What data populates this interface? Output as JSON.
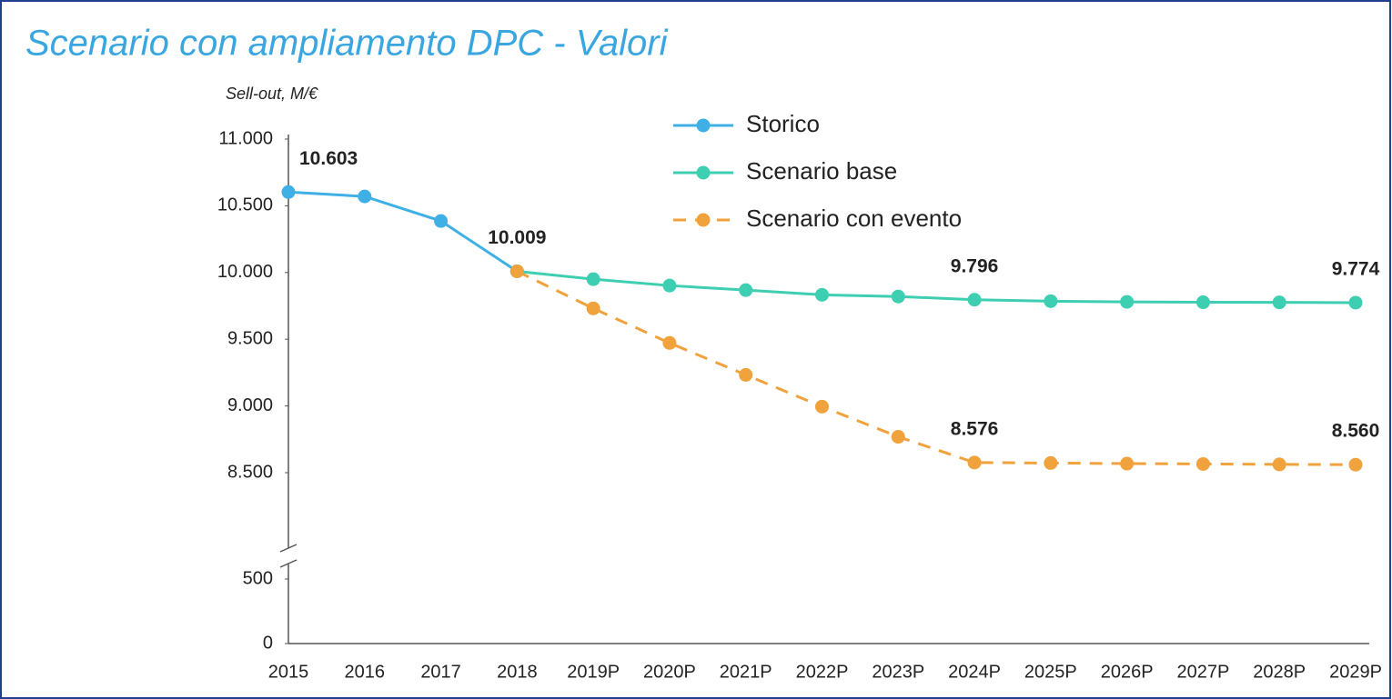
{
  "chart_data": {
    "type": "line",
    "title": "Scenario con ampliamento DPC - Valori",
    "y_label": "Sell-out, M/€",
    "categories": [
      "2015",
      "2016",
      "2017",
      "2018",
      "2019P",
      "2020P",
      "2021P",
      "2022P",
      "2023P",
      "2024P",
      "2025P",
      "2026P",
      "2027P",
      "2028P",
      "2029P"
    ],
    "series": [
      {
        "name": "Storico",
        "color": "#3fb0e6",
        "style": "solid",
        "values": [
          10603,
          10570,
          10386,
          10009,
          null,
          null,
          null,
          null,
          null,
          null,
          null,
          null,
          null,
          null,
          null
        ],
        "value_labels": [
          "10.603",
          null,
          null,
          "10.009",
          null,
          null,
          null,
          null,
          null,
          null,
          null,
          null,
          null,
          null,
          null
        ]
      },
      {
        "name": "Scenario base",
        "color": "#3ecfb2",
        "style": "solid",
        "values": [
          null,
          null,
          null,
          10009,
          9950,
          9902,
          9868,
          9833,
          9820,
          9796,
          9785,
          9780,
          9777,
          9776,
          9774
        ],
        "value_labels": [
          null,
          null,
          null,
          null,
          null,
          null,
          null,
          null,
          null,
          "9.796",
          null,
          null,
          null,
          null,
          "9.774"
        ]
      },
      {
        "name": "Scenario con evento",
        "color": "#f0a23c",
        "style": "dashed",
        "values": [
          null,
          null,
          null,
          10009,
          9731,
          9472,
          9233,
          8995,
          8769,
          8576,
          8572,
          8568,
          8565,
          8562,
          8560
        ],
        "value_labels": [
          null,
          null,
          null,
          null,
          null,
          null,
          null,
          null,
          null,
          "8.576",
          null,
          null,
          null,
          null,
          "8.560"
        ]
      }
    ],
    "ylim": [
      0,
      11000
    ],
    "y_break": [
      500,
      8500
    ],
    "yticks": [
      0,
      500,
      {
        "value": 8500,
        "label": "8.500"
      },
      {
        "value": 9000,
        "label": "9.000"
      },
      {
        "value": 9500,
        "label": "9.500"
      },
      {
        "value": 10000,
        "label": "10.000"
      },
      {
        "value": 10500,
        "label": "10.500"
      },
      {
        "value": 11000,
        "label": "11.000"
      }
    ],
    "legend": "top",
    "grid": false
  }
}
